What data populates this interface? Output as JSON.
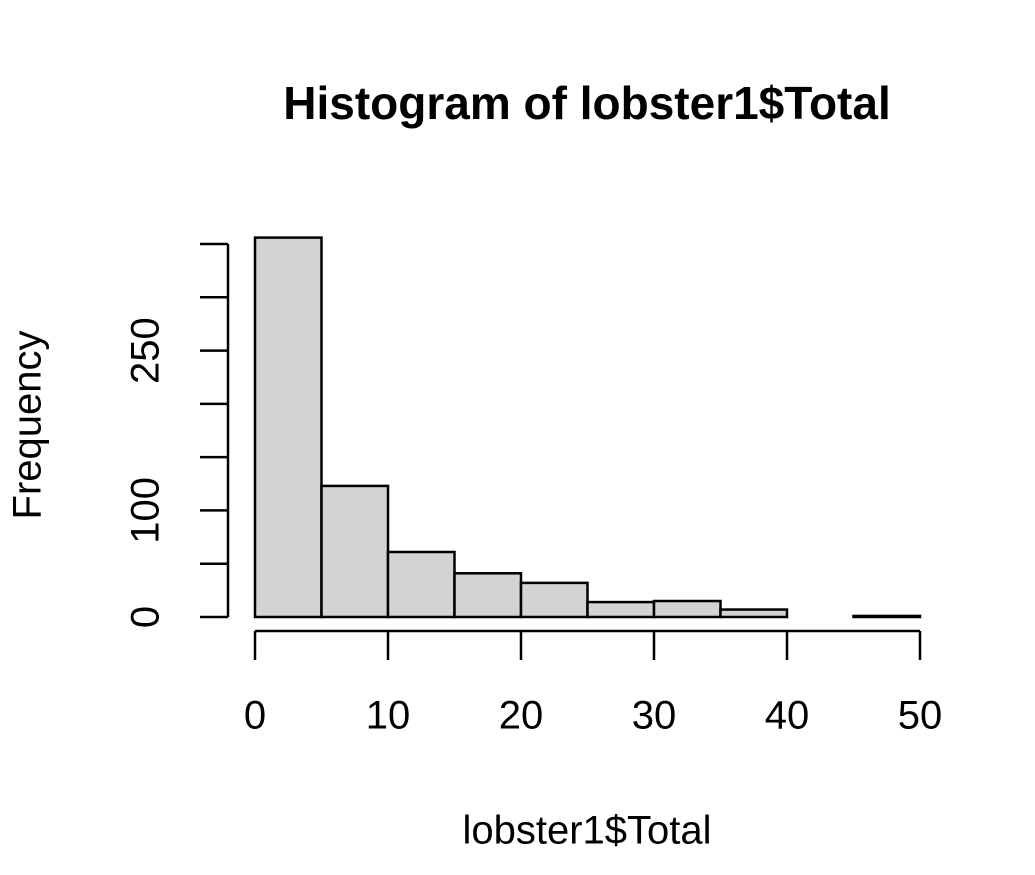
{
  "chart_data": {
    "type": "histogram",
    "title": "Histogram of lobster1$Total",
    "x_label": "lobster1$Total",
    "y_label": "Frequency",
    "bins": [
      0,
      5,
      10,
      15,
      20,
      25,
      30,
      35,
      40,
      45,
      50
    ],
    "values": [
      356,
      123,
      61,
      41,
      32,
      14,
      15,
      7,
      0,
      1
    ],
    "color": "#d3d3d3",
    "xlim": [
      0,
      50
    ],
    "xticks": [
      0,
      10,
      20,
      30,
      40,
      50
    ],
    "ylim": [
      0,
      350
    ],
    "yticks": [
      0,
      100,
      250
    ],
    "y_tick_marks": [
      0,
      50,
      100,
      150,
      200,
      250,
      300,
      350
    ]
  }
}
